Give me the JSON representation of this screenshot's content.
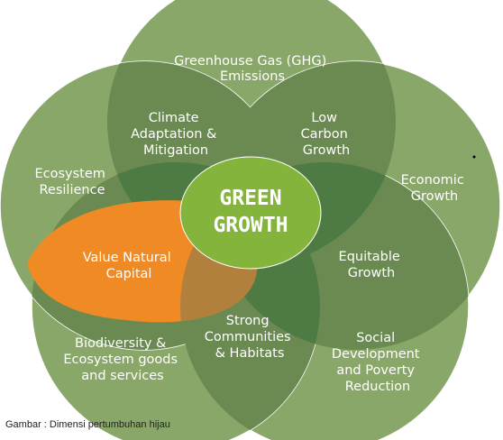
{
  "center": {
    "line1": "GREEN",
    "line2": "GROWTH"
  },
  "outer": {
    "ghg": [
      "Greenhouse Gas (GHG)",
      "Emissions"
    ],
    "economic": [
      "Economic",
      "Growth"
    ],
    "social": [
      "Social",
      "Development",
      "and Poverty",
      "Reduction"
    ],
    "biodiversity": [
      "Biodiversity &",
      "Ecosystem goods",
      "and services"
    ],
    "ecosystem": [
      "Ecosystem",
      "Resilience"
    ]
  },
  "overlaps": {
    "climate": [
      "Climate",
      "Adaptation &",
      "Mitigation"
    ],
    "lowcarbon": [
      "Low",
      "Carbon",
      "Growth"
    ],
    "equitable": [
      "Equitable",
      "Growth"
    ],
    "strong": [
      "Strong",
      "Communities",
      "& Habitats"
    ],
    "valuenatural": [
      "Value Natural",
      "Capital"
    ]
  },
  "caption": "Gambar : Dimensi pertumbuhan hijau",
  "colors": {
    "petal": "#8aa76a",
    "overlap": "#6a8a52",
    "triple": "#4e7a44",
    "center": "#85b43c",
    "highlight": "#f08a24",
    "highlight_overlap": "#b0803c"
  }
}
